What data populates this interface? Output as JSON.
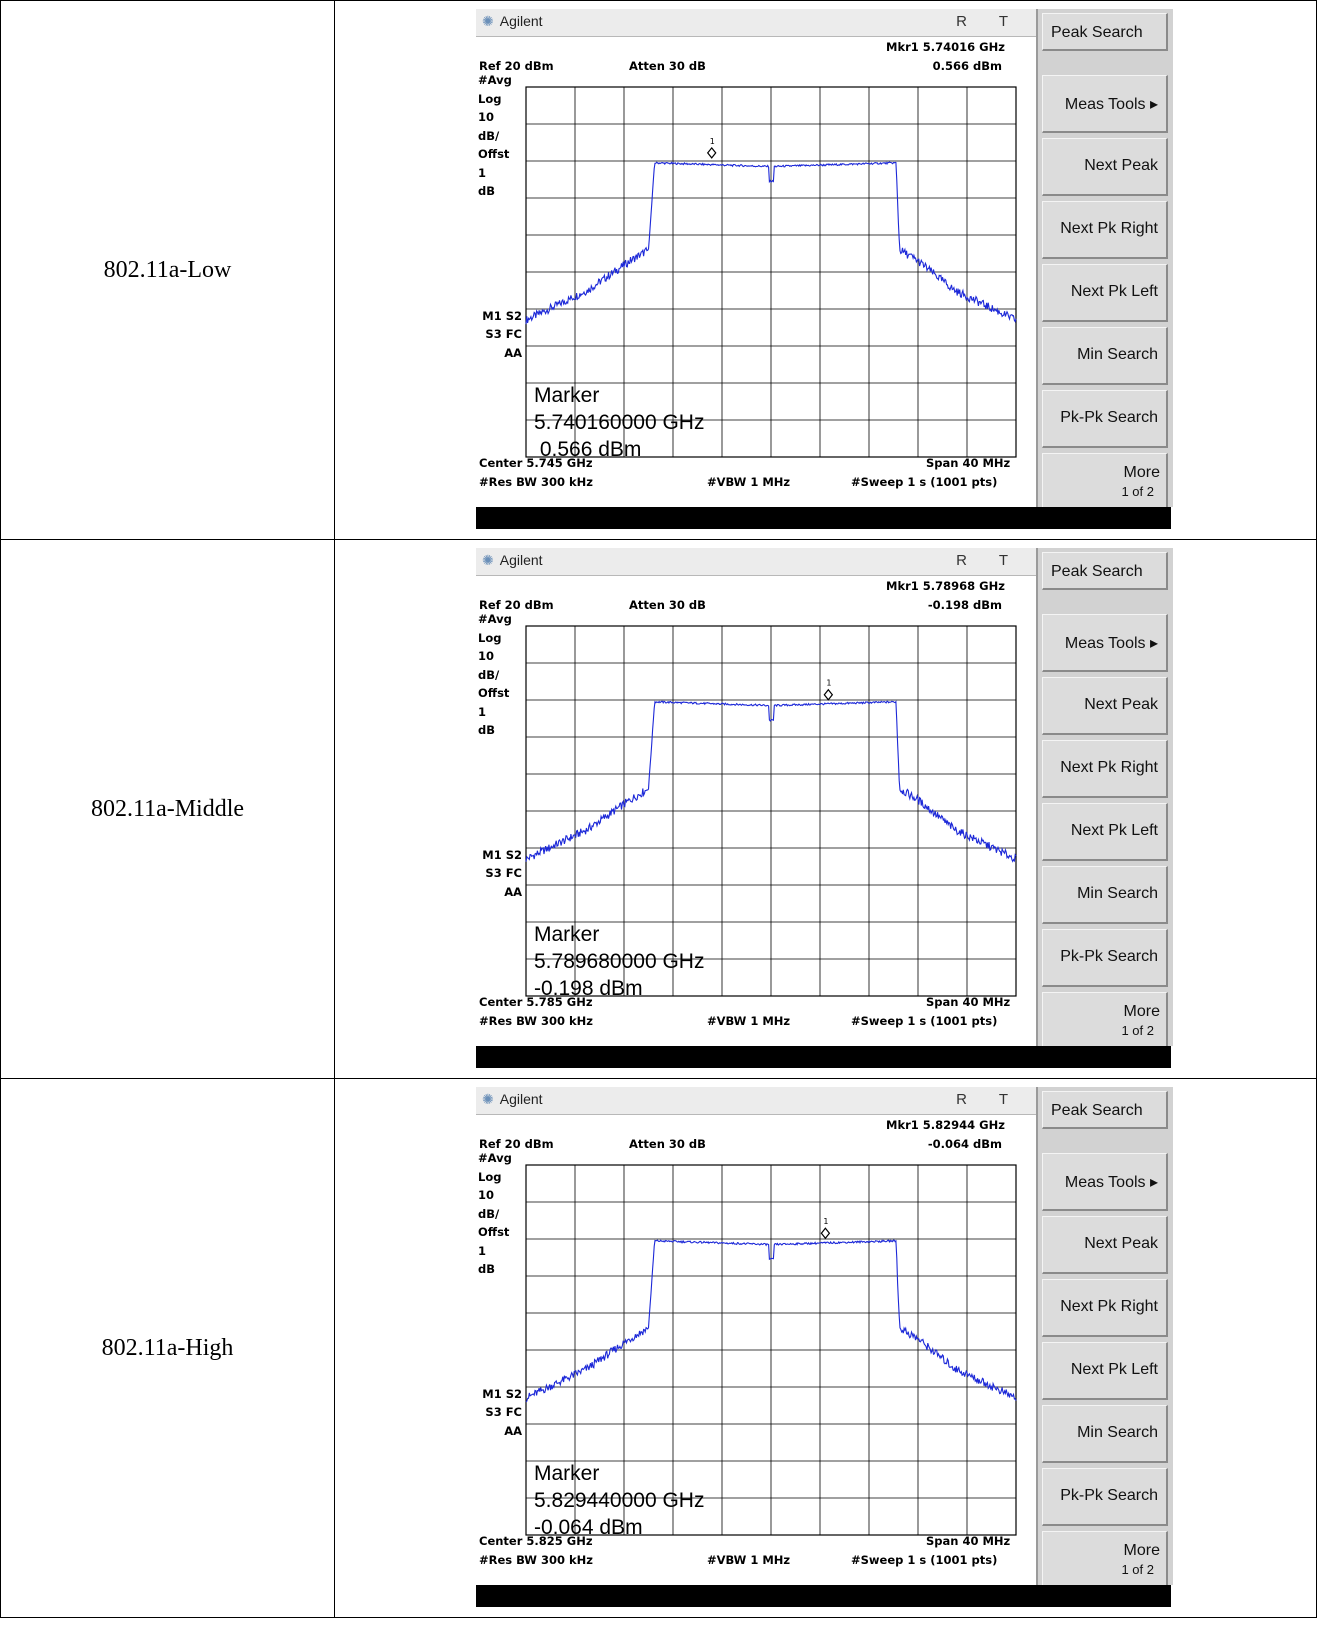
{
  "rows": [
    {
      "label": "802.11a-Low",
      "brand": "Agilent",
      "rt": "R T",
      "mkr_freq": "Mkr1  5.74016 GHz",
      "mkr_amp": "0.566 dBm",
      "ref": "Ref 20 dBm",
      "atten": "Atten 30 dB",
      "left_labels": [
        "#Avg",
        "Log",
        "10",
        "dB/",
        "Offst",
        "1",
        "dB"
      ],
      "m1": "M1  S2",
      "s3": "S3  FC",
      "aa": "AA",
      "marker_title": "Marker",
      "marker_freq": "5.740160000 GHz",
      "marker_amp": " 0.566 dBm",
      "center": "Center 5.745 GHz",
      "span": "Span 40 MHz",
      "res_bw": "#Res BW 300 kHz",
      "vbw": "#VBW 1 MHz",
      "sweep": "#Sweep 1 s (1001 pts)",
      "softkeys": [
        "Peak Search",
        "Meas Tools ▸",
        "Next Peak",
        "Next Pk Right",
        "Next Pk Left",
        "Min Search",
        "Pk-Pk Search"
      ],
      "more": "More",
      "more_sub": "1 of 2"
    },
    {
      "label": "802.11a-Middle",
      "brand": "Agilent",
      "rt": "R T",
      "mkr_freq": "Mkr1  5.78968 GHz",
      "mkr_amp": "-0.198 dBm",
      "ref": "Ref 20 dBm",
      "atten": "Atten 30 dB",
      "left_labels": [
        "#Avg",
        "Log",
        "10",
        "dB/",
        "Offst",
        "1",
        "dB"
      ],
      "m1": "M1  S2",
      "s3": "S3  FC",
      "aa": "AA",
      "marker_title": "Marker",
      "marker_freq": "5.789680000 GHz",
      "marker_amp": "-0.198 dBm",
      "center": "Center 5.785 GHz",
      "span": "Span 40 MHz",
      "res_bw": "#Res BW 300 kHz",
      "vbw": "#VBW 1 MHz",
      "sweep": "#Sweep 1 s (1001 pts)",
      "softkeys": [
        "Peak Search",
        "Meas Tools ▸",
        "Next Peak",
        "Next Pk Right",
        "Next Pk Left",
        "Min Search",
        "Pk-Pk Search"
      ],
      "more": "More",
      "more_sub": "1 of 2"
    },
    {
      "label": "802.11a-High",
      "brand": "Agilent",
      "rt": "R T",
      "mkr_freq": "Mkr1  5.82944 GHz",
      "mkr_amp": "-0.064 dBm",
      "ref": "Ref 20 dBm",
      "atten": "Atten 30 dB",
      "left_labels": [
        "#Avg",
        "Log",
        "10",
        "dB/",
        "Offst",
        "1",
        "dB"
      ],
      "m1": "M1  S2",
      "s3": "S3  FC",
      "aa": "AA",
      "marker_title": "Marker",
      "marker_freq": "5.829440000 GHz",
      "marker_amp": "-0.064 dBm",
      "center": "Center 5.825 GHz",
      "span": "Span 40 MHz",
      "res_bw": "#Res BW 300 kHz",
      "vbw": "#VBW 1 MHz",
      "sweep": "#Sweep 1 s (1001 pts)",
      "softkeys": [
        "Peak Search",
        "Meas Tools ▸",
        "Next Peak",
        "Next Pk Right",
        "Next Pk Left",
        "Min Search",
        "Pk-Pk Search"
      ],
      "more": "More",
      "more_sub": "1 of 2"
    }
  ],
  "colors": {
    "trace": "#1c28d8",
    "grid": "#000000",
    "softkey_bg": "#dcdcdc",
    "titlebar": "#ececec"
  },
  "chart_data": [
    {
      "type": "line",
      "center_ghz": 5.745,
      "span_mhz": 40,
      "ref_dbm": 20,
      "db_per_div": 10,
      "offset_db": 1,
      "xlim_ghz": [
        5.725,
        5.765
      ],
      "ylim_dbm": [
        -80,
        20
      ],
      "x_ghz": [
        5.725,
        5.73,
        5.7335,
        5.735,
        5.7355,
        5.745,
        5.7552,
        5.7555,
        5.757,
        5.76,
        5.765
      ],
      "y_dbm": [
        -43,
        -35,
        -27,
        -24,
        -0.5,
        -1.5,
        -0.5,
        -24,
        -27,
        -35,
        -43
      ],
      "marker": {
        "label": "1",
        "freq_ghz": 5.74016,
        "amp_dbm": 0.566
      },
      "grid": true
    },
    {
      "type": "line",
      "center_ghz": 5.785,
      "span_mhz": 40,
      "ref_dbm": 20,
      "db_per_div": 10,
      "offset_db": 1,
      "xlim_ghz": [
        5.765,
        5.805
      ],
      "ylim_dbm": [
        -80,
        20
      ],
      "x_ghz": [
        5.765,
        5.77,
        5.7735,
        5.775,
        5.7755,
        5.785,
        5.7952,
        5.7955,
        5.797,
        5.8,
        5.805
      ],
      "y_dbm": [
        -43,
        -35,
        -27,
        -24,
        -0.5,
        -1.5,
        -0.5,
        -24,
        -27,
        -35,
        -43
      ],
      "marker": {
        "label": "1",
        "freq_ghz": 5.78968,
        "amp_dbm": -0.198
      },
      "grid": true
    },
    {
      "type": "line",
      "center_ghz": 5.825,
      "span_mhz": 40,
      "ref_dbm": 20,
      "db_per_div": 10,
      "offset_db": 1,
      "xlim_ghz": [
        5.805,
        5.845
      ],
      "ylim_dbm": [
        -80,
        20
      ],
      "x_ghz": [
        5.805,
        5.81,
        5.8135,
        5.815,
        5.8155,
        5.825,
        5.8352,
        5.8355,
        5.837,
        5.84,
        5.845
      ],
      "y_dbm": [
        -43,
        -35,
        -27,
        -24,
        -0.5,
        -1.5,
        -0.5,
        -24,
        -27,
        -35,
        -43
      ],
      "marker": {
        "label": "1",
        "freq_ghz": 5.82944,
        "amp_dbm": -0.064
      },
      "grid": true
    }
  ]
}
